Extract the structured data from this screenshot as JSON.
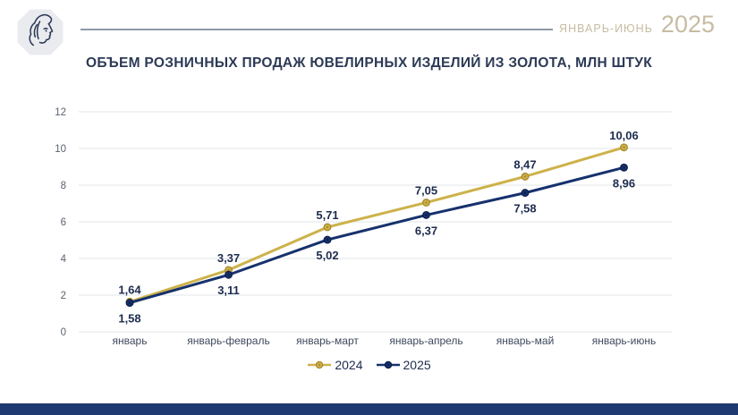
{
  "header": {
    "period_label": "ЯНВАРЬ-ИЮНЬ",
    "year": "2025",
    "logo": "woman-profile-octagon-emblem"
  },
  "title": "ОБЪЕМ РОЗНИЧНЫХ ПРОДАЖ ЮВЕЛИРНЫХ ИЗДЕЛИЙ ИЗ ЗОЛОТА, МЛН ШТУК",
  "colors": {
    "gold": "#CDB24A",
    "gold_dark": "#A8892E",
    "navy": "#16316D",
    "navy_dark": "#0C1F4A",
    "grid": "#E7E9ED",
    "axis_text": "#5A6370",
    "x_axis_text": "#3E4A5C",
    "value_label": "#1D2C4E",
    "title_text": "#2C3A55",
    "beige": "#C6BCA2",
    "rule": "#8E98A6",
    "footer": "#1F3A70",
    "logo_bg": "#E9EBEF",
    "logo_line": "#2E3C58"
  },
  "chart_data": {
    "type": "line",
    "title": "ОБЪЕМ РОЗНИЧНЫХ ПРОДАЖ ЮВЕЛИРНЫХ ИЗДЕЛИЙ ИЗ ЗОЛОТА, МЛН ШТУК",
    "categories": [
      "январь",
      "январь-февраль",
      "январь-март",
      "январь-апрель",
      "январь-май",
      "январь-июнь"
    ],
    "yticks": [
      0,
      2,
      4,
      6,
      8,
      10,
      12
    ],
    "ylim": [
      0,
      12
    ],
    "grid": true,
    "legend_position": "bottom",
    "series": [
      {
        "name": "2024",
        "color_key": "gold",
        "values": [
          1.64,
          3.37,
          5.71,
          7.05,
          8.47,
          10.06
        ],
        "labels": [
          "1,64",
          "3,37",
          "5,71",
          "7,05",
          "8,47",
          "10,06"
        ],
        "label_position": "above"
      },
      {
        "name": "2025",
        "color_key": "navy",
        "values": [
          1.58,
          3.11,
          5.02,
          6.37,
          7.58,
          8.96
        ],
        "labels": [
          "1,58",
          "3,11",
          "5,02",
          "6,37",
          "7,58",
          "8,96"
        ],
        "label_position": "below"
      }
    ]
  }
}
